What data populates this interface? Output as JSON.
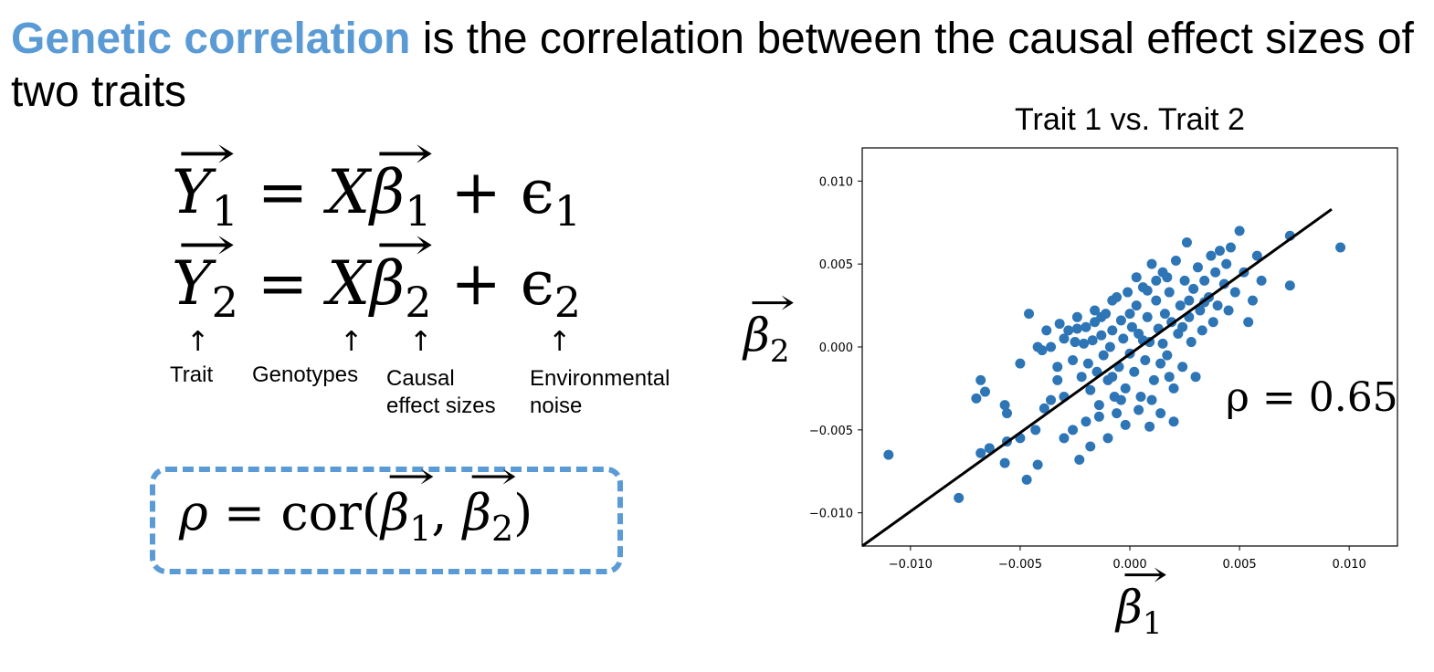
{
  "heading": {
    "highlight": "Genetic correlation",
    "rest": " is the correlation between the causal effect sizes of two traits"
  },
  "colors": {
    "accent": "#5b9bd5",
    "points": "#2e75b6",
    "fit_line": "#000000"
  },
  "equations": {
    "eq1": {
      "lhs": "Y",
      "lhs_sub": "1",
      "eq": " = X",
      "beta": "β",
      "beta_sub": "1",
      "plus": " + ϵ",
      "eps_sub": "1"
    },
    "eq2": {
      "lhs": "Y",
      "lhs_sub": "2",
      "eq": " = X",
      "beta": "β",
      "beta_sub": "2",
      "plus": " + ϵ",
      "eps_sub": "2"
    }
  },
  "labels": {
    "trait": "Trait",
    "genotypes": "Genotypes",
    "causal_1": "Causal",
    "causal_2": "effect sizes",
    "env_1": "Environmental",
    "env_2": "noise"
  },
  "rho_def": {
    "rho": "ρ",
    "eq": " = cor(",
    "b1": "β",
    "s1": "1",
    "comma": ", ",
    "b2": "β",
    "s2": "2",
    "close": ")"
  },
  "axis_labels": {
    "x": {
      "symbol": "β",
      "sub": "1"
    },
    "y": {
      "symbol": "β",
      "sub": "2"
    }
  },
  "chart_data": {
    "type": "scatter",
    "title": "Trait 1 vs. Trait 2",
    "xlim": [
      -0.0122,
      0.0122
    ],
    "ylim": [
      -0.012,
      0.012
    ],
    "xticks": [
      -0.01,
      -0.005,
      0.0,
      0.005,
      0.01
    ],
    "yticks": [
      -0.01,
      -0.005,
      0.0,
      0.005,
      0.01
    ],
    "xtick_labels": [
      "−0.010",
      "−0.005",
      "0.000",
      "0.005",
      "0.010"
    ],
    "ytick_labels": [
      "−0.010",
      "−0.005",
      "0.000",
      "0.005",
      "0.010"
    ],
    "annotation": "ρ = 0.65",
    "fit_line": {
      "x": [
        -0.0122,
        0.0092
      ],
      "y": [
        -0.012,
        0.0083
      ]
    },
    "points": [
      [
        -0.011,
        -0.0065
      ],
      [
        -0.0078,
        -0.0091
      ],
      [
        -0.0068,
        -0.0064
      ],
      [
        -0.0064,
        -0.0061
      ],
      [
        -0.0057,
        -0.007
      ],
      [
        -0.0056,
        -0.0057
      ],
      [
        -0.005,
        -0.0055
      ],
      [
        -0.0047,
        -0.008
      ],
      [
        -0.0042,
        -0.0071
      ],
      [
        -0.0068,
        -0.002
      ],
      [
        -0.0066,
        -0.0027
      ],
      [
        -0.007,
        -0.0031
      ],
      [
        -0.0057,
        -0.0035
      ],
      [
        -0.0056,
        -0.004
      ],
      [
        -0.005,
        -0.001
      ],
      [
        -0.0043,
        -0.005
      ],
      [
        -0.0039,
        -0.0037
      ],
      [
        -0.0036,
        -0.0032
      ],
      [
        -0.0033,
        -0.002
      ],
      [
        -0.003,
        -0.003
      ],
      [
        -0.0046,
        0.002
      ],
      [
        -0.0042,
        0.0
      ],
      [
        -0.004,
        -0.0002
      ],
      [
        -0.0038,
        0.001
      ],
      [
        -0.0036,
        0.0
      ],
      [
        -0.0033,
        -0.0012
      ],
      [
        -0.003,
        0.0005
      ],
      [
        -0.0028,
        0.001
      ],
      [
        -0.0026,
        -0.0008
      ],
      [
        -0.0025,
        0.0003
      ],
      [
        -0.0024,
        0.0011
      ],
      [
        -0.0022,
        -0.0018
      ],
      [
        -0.0021,
        0.0002
      ],
      [
        -0.002,
        0.0012
      ],
      [
        -0.0019,
        -0.001
      ],
      [
        -0.0018,
        -0.0026
      ],
      [
        -0.0017,
        0.0004
      ],
      [
        -0.0016,
        0.0015
      ],
      [
        -0.0015,
        -0.0015
      ],
      [
        -0.0014,
        -0.0035
      ],
      [
        -0.0013,
        0.0007
      ],
      [
        -0.0012,
        -0.0005
      ],
      [
        -0.0011,
        0.002
      ],
      [
        -0.001,
        -0.002
      ],
      [
        -0.0009,
        0.0
      ],
      [
        -0.0008,
        0.001
      ],
      [
        -0.0007,
        -0.003
      ],
      [
        -0.0006,
        0.003
      ],
      [
        -0.0005,
        -0.0012
      ],
      [
        -0.0004,
        0.0016
      ],
      [
        -0.0003,
        0.0005
      ],
      [
        -0.0002,
        -0.0025
      ],
      [
        -0.0001,
        0.0033
      ],
      [
        0.0,
        -0.0004
      ],
      [
        0.0001,
        0.0012
      ],
      [
        0.0002,
        -0.0015
      ],
      [
        0.0003,
        0.0025
      ],
      [
        0.0004,
        0.0008
      ],
      [
        0.0005,
        -0.003
      ],
      [
        0.0006,
        0.0036
      ],
      [
        0.0007,
        -0.0008
      ],
      [
        0.0008,
        0.0018
      ],
      [
        0.0009,
        0.0003
      ],
      [
        0.001,
        0.005
      ],
      [
        0.0011,
        -0.002
      ],
      [
        0.0012,
        0.0028
      ],
      [
        0.0013,
        0.0011
      ],
      [
        0.0014,
        -0.001
      ],
      [
        0.0015,
        0.0045
      ],
      [
        0.0016,
        0.002
      ],
      [
        0.0017,
        -0.0005
      ],
      [
        0.0018,
        0.0033
      ],
      [
        0.0019,
        0.0015
      ],
      [
        0.002,
        -0.0025
      ],
      [
        0.0021,
        0.0052
      ],
      [
        0.0022,
        0.0008
      ],
      [
        0.0023,
        0.0025
      ],
      [
        0.0024,
        -0.0012
      ],
      [
        0.0025,
        0.004
      ],
      [
        0.0026,
        0.0063
      ],
      [
        0.0027,
        0.0018
      ],
      [
        0.0028,
        0.0003
      ],
      [
        0.0029,
        0.0035
      ],
      [
        0.003,
        -0.0018
      ],
      [
        0.0031,
        0.0048
      ],
      [
        0.0032,
        0.0022
      ],
      [
        0.0033,
        0.001
      ],
      [
        0.0034,
        0.004
      ],
      [
        0.0036,
        0.003
      ],
      [
        0.0037,
        0.0055
      ],
      [
        0.0038,
        0.0015
      ],
      [
        0.0039,
        0.0045
      ],
      [
        0.004,
        0.0025
      ],
      [
        0.0041,
        0.0058
      ],
      [
        0.0043,
        0.0038
      ],
      [
        0.0044,
        0.005
      ],
      [
        0.0045,
        0.0022
      ],
      [
        0.0046,
        0.006
      ],
      [
        0.0048,
        0.0033
      ],
      [
        0.005,
        0.007
      ],
      [
        0.0052,
        0.0045
      ],
      [
        0.0054,
        0.0015
      ],
      [
        0.0056,
        0.0028
      ],
      [
        0.0058,
        0.0055
      ],
      [
        0.006,
        0.004
      ],
      [
        0.0073,
        0.0067
      ],
      [
        0.0073,
        0.0037
      ],
      [
        0.0096,
        0.006
      ],
      [
        -0.003,
        -0.0055
      ],
      [
        -0.0026,
        -0.005
      ],
      [
        -0.0023,
        -0.0068
      ],
      [
        -0.002,
        -0.0045
      ],
      [
        -0.0018,
        -0.006
      ],
      [
        -0.0014,
        -0.0042
      ],
      [
        -0.001,
        -0.0055
      ],
      [
        -0.0006,
        -0.004
      ],
      [
        -0.0002,
        -0.0047
      ],
      [
        0.0004,
        -0.0038
      ],
      [
        0.0009,
        -0.0048
      ],
      [
        0.0014,
        -0.004
      ],
      [
        0.002,
        -0.0045
      ],
      [
        0.0003,
        0.0042
      ],
      [
        -0.0008,
        0.0028
      ],
      [
        -0.0013,
        0.0018
      ],
      [
        0.0008,
        0.0034
      ],
      [
        0.0012,
        0.004
      ],
      [
        0.0017,
        0.0042
      ],
      [
        -0.0024,
        0.0018
      ],
      [
        -0.0032,
        0.0014
      ],
      [
        0.0027,
        0.0028
      ],
      [
        0.0034,
        0.0027
      ],
      [
        -0.0004,
        -0.0032
      ],
      [
        0.001,
        -0.0032
      ],
      [
        -0.0016,
        0.0022
      ],
      [
        0.0,
        0.002
      ],
      [
        0.0006,
        0.0004
      ],
      [
        0.0015,
        0.0002
      ],
      [
        0.0024,
        0.0012
      ],
      [
        -0.0008,
        -0.0018
      ],
      [
        0.0018,
        -0.0018
      ]
    ]
  }
}
